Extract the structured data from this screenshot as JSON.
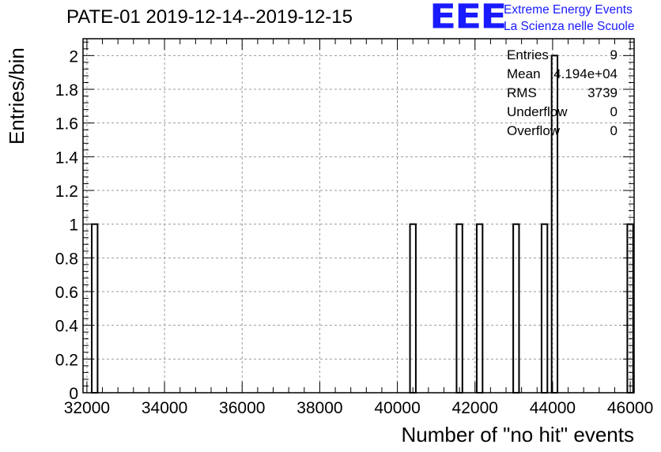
{
  "chart_data": {
    "type": "bar",
    "title": "PATE-01 2019-12-14--2019-12-15",
    "xlabel": "Number of \"no hit\" events",
    "ylabel": "Entries/bin",
    "xlim": [
      31900,
      46100
    ],
    "ylim": [
      0,
      2.1
    ],
    "grid": true,
    "xticks": [
      32000,
      34000,
      36000,
      38000,
      40000,
      42000,
      44000,
      46000
    ],
    "yticks": [
      0,
      0.2,
      0.4,
      0.6,
      0.8,
      1,
      1.2,
      1.4,
      1.6,
      1.8,
      2
    ],
    "ytick_labels": [
      "0",
      "0.2",
      "0.4",
      "0.6",
      "0.8",
      "1",
      "1.2",
      "1.4",
      "1.6",
      "1.8",
      "2"
    ],
    "bin_width": 150,
    "bars": [
      {
        "x": 32200,
        "value": 1
      },
      {
        "x": 40400,
        "value": 1
      },
      {
        "x": 41600,
        "value": 1
      },
      {
        "x": 42120,
        "value": 1
      },
      {
        "x": 43060,
        "value": 1
      },
      {
        "x": 43790,
        "value": 1
      },
      {
        "x": 44050,
        "value": 2
      },
      {
        "x": 46000,
        "value": 1
      }
    ],
    "stats": [
      {
        "label": "Entries",
        "value": "9"
      },
      {
        "label": "Mean",
        "value": "4.194e+04"
      },
      {
        "label": "RMS",
        "value": "3739"
      },
      {
        "label": "Underflow",
        "value": "0"
      },
      {
        "label": "Overflow",
        "value": "0"
      }
    ]
  },
  "logo": {
    "text": "EEE",
    "line1": "Extreme Energy Events",
    "line2": "La Scienza nelle Scuole",
    "color": "#1a1aff"
  }
}
